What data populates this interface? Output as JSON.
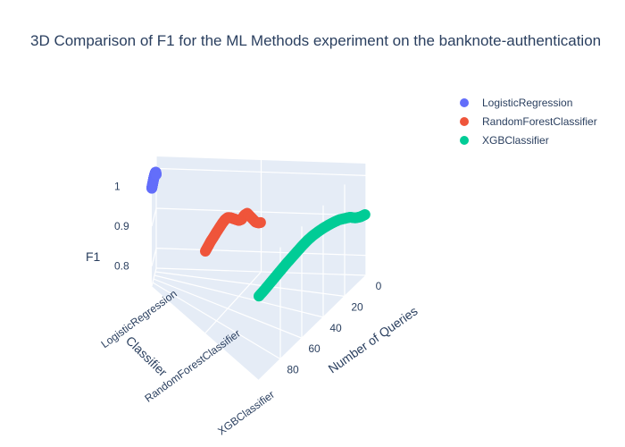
{
  "chart_data": {
    "type": "scatter",
    "title": "3D Comparison of F1 for the ML Methods experiment on the banknote-authentication",
    "axes": {
      "x": {
        "label": "Number of Queries",
        "ticks": [
          0,
          20,
          40,
          60,
          80
        ]
      },
      "y": {
        "label": "Classifier",
        "ticks": [
          "LogisticRegression",
          "RandomForestClassifier",
          "XGBClassifier"
        ]
      },
      "z": {
        "label": "F1",
        "ticks": [
          0.8,
          0.9,
          1
        ]
      }
    },
    "legend_placement": "top-right",
    "series": [
      {
        "name": "LogisticRegression",
        "color": "#636efa",
        "classifier": "LogisticRegression",
        "x": [
          100,
          95,
          90,
          85,
          80,
          75,
          70,
          65,
          60,
          55,
          50,
          45,
          40,
          35,
          30,
          25,
          20,
          15,
          10,
          5,
          1
        ],
        "f1": [
          0.995,
          0.996,
          0.997,
          0.997,
          0.998,
          0.998,
          0.999,
          0.999,
          1.0,
          1.0,
          1.0,
          1.0,
          1.0,
          1.0,
          0.999,
          0.999,
          0.998,
          0.997,
          0.995,
          0.99,
          0.985
        ]
      },
      {
        "name": "RandomForestClassifier",
        "color": "#ef553b",
        "classifier": "RandomForestClassifier",
        "x": [
          100,
          95,
          90,
          85,
          80,
          75,
          70,
          65,
          60,
          55,
          50,
          45,
          40,
          35,
          30,
          25,
          20,
          15,
          10,
          5,
          1
        ],
        "f1": [
          0.955,
          0.96,
          0.965,
          0.968,
          0.972,
          0.975,
          0.978,
          0.98,
          0.978,
          0.97,
          0.96,
          0.95,
          0.94,
          0.935,
          0.938,
          0.935,
          0.92,
          0.905,
          0.89,
          0.88,
          0.875
        ]
      },
      {
        "name": "XGBClassifier",
        "color": "#00cc96",
        "classifier": "XGBClassifier",
        "x": [
          100,
          95,
          90,
          85,
          80,
          75,
          70,
          65,
          60,
          55,
          50,
          45,
          40,
          35,
          30,
          25,
          20,
          15,
          10,
          5,
          1
        ],
        "f1": [
          0.96,
          0.962,
          0.965,
          0.968,
          0.971,
          0.974,
          0.976,
          0.978,
          0.98,
          0.981,
          0.98,
          0.977,
          0.973,
          0.968,
          0.962,
          0.955,
          0.945,
          0.935,
          0.92,
          0.91,
          0.905
        ]
      }
    ]
  }
}
